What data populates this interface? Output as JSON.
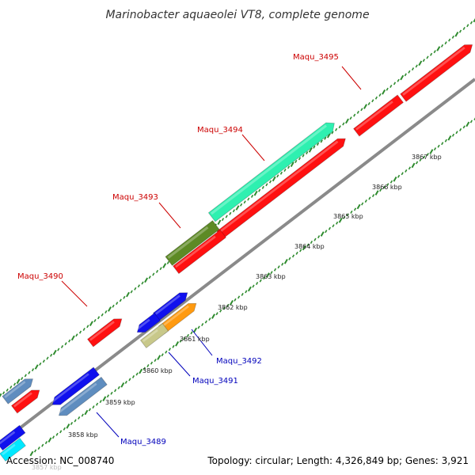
{
  "title": "Marinobacter aquaeolei VT8, complete genome",
  "accession": "Accession: NC_008740",
  "topology": "Topology: circular; Length: 4,326,849 bp; Genes: 3,921",
  "faded_label": "3857 kbp",
  "colors": {
    "backbone": "#8a8a8a",
    "tick_green": "#2e8b2e",
    "label_red": "#cc0000",
    "label_blue": "#0000bb",
    "red": "#ff1010",
    "blue": "#1010ee",
    "steelblue": "#5f8dbf",
    "aqua": "#2ef0b0",
    "olive": "#5d8a25",
    "orange": "#ff9a10",
    "khaki": "#c8c88a",
    "cyan": "#00e8ff"
  },
  "kbp_labels": [
    "3858 kbp",
    "3859 kbp",
    "3860 kbp",
    "3861 kbp",
    "3862 kbp",
    "3863 kbp",
    "3864 kbp",
    "3865 kbp",
    "3866 kbp",
    "3867 kbp"
  ],
  "gene_labels": [
    "Maqu_3495",
    "Maqu_3494",
    "Maqu_3493",
    "Maqu_3490",
    "Maqu_3492",
    "Maqu_3491",
    "Maqu_3489"
  ]
}
